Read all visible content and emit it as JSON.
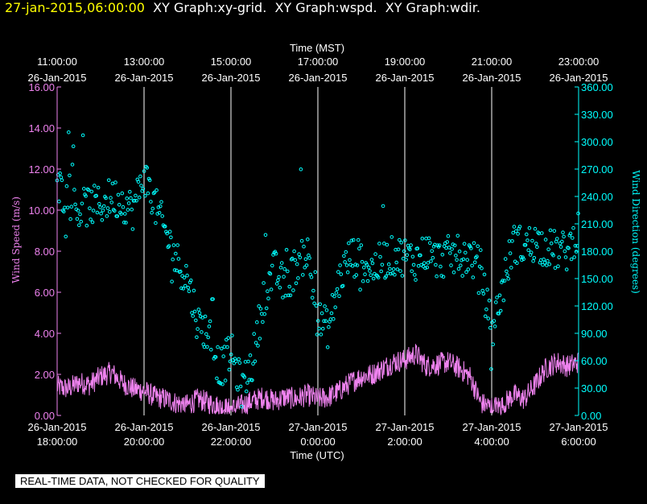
{
  "header": {
    "timestamp": "27-jan-2015,06:00:00",
    "titles": [
      "XY Graph:xy-grid.",
      "XY Graph:wspd.",
      "XY Graph:wdir."
    ]
  },
  "notice": "REAL-TIME DATA, NOT CHECKED FOR QUALITY",
  "colors": {
    "grid": "#ffffff",
    "speed": "#ee82ee",
    "direction": "#00ffff",
    "background": "#000000",
    "header_timestamp": "#ffff00"
  },
  "chart_data": {
    "type": "scatter",
    "x_top_label": "Time (MST)",
    "x_bottom_label": "Time (UTC)",
    "y_left_label": "Wind Speed (m/s)",
    "y_right_label": "Wind Direction (degrees)",
    "x_range_utc_hours": [
      18,
      30
    ],
    "ylim_left": [
      0,
      16
    ],
    "ylim_right": [
      0,
      360
    ],
    "grid": "vertical",
    "top_ticks": [
      {
        "hour": 18,
        "time": "11:00:00",
        "date": "26-Jan-2015"
      },
      {
        "hour": 20,
        "time": "13:00:00",
        "date": "26-Jan-2015"
      },
      {
        "hour": 22,
        "time": "15:00:00",
        "date": "26-Jan-2015"
      },
      {
        "hour": 24,
        "time": "17:00:00",
        "date": "26-Jan-2015"
      },
      {
        "hour": 26,
        "time": "19:00:00",
        "date": "26-Jan-2015"
      },
      {
        "hour": 28,
        "time": "21:00:00",
        "date": "26-Jan-2015"
      },
      {
        "hour": 30,
        "time": "23:00:00",
        "date": "26-Jan-2015"
      }
    ],
    "bottom_ticks": [
      {
        "hour": 18,
        "date": "26-Jan-2015",
        "time": "18:00:00"
      },
      {
        "hour": 20,
        "date": "26-Jan-2015",
        "time": "20:00:00"
      },
      {
        "hour": 22,
        "date": "26-Jan-2015",
        "time": "22:00:00"
      },
      {
        "hour": 24,
        "date": "27-Jan-2015",
        "time": "0:00:00"
      },
      {
        "hour": 26,
        "date": "27-Jan-2015",
        "time": "2:00:00"
      },
      {
        "hour": 28,
        "date": "27-Jan-2015",
        "time": "4:00:00"
      },
      {
        "hour": 30,
        "date": "27-Jan-2015",
        "time": "6:00:00"
      }
    ],
    "left_ticks": [
      {
        "v": 0,
        "label": "0.00"
      },
      {
        "v": 2,
        "label": "2.00"
      },
      {
        "v": 4,
        "label": "4.00"
      },
      {
        "v": 6,
        "label": "6.00"
      },
      {
        "v": 8,
        "label": "8.00"
      },
      {
        "v": 10,
        "label": "10.00"
      },
      {
        "v": 12,
        "label": "12.00"
      },
      {
        "v": 14,
        "label": "14.00"
      },
      {
        "v": 16,
        "label": "16.00"
      }
    ],
    "right_ticks": [
      {
        "v": 0,
        "label": "0.00"
      },
      {
        "v": 30,
        "label": "30.00"
      },
      {
        "v": 60,
        "label": "60.00"
      },
      {
        "v": 90,
        "label": "90.00"
      },
      {
        "v": 120,
        "label": "120.00"
      },
      {
        "v": 150,
        "label": "150.00"
      },
      {
        "v": 180,
        "label": "180.00"
      },
      {
        "v": 210,
        "label": "210.00"
      },
      {
        "v": 240,
        "label": "240.00"
      },
      {
        "v": 270,
        "label": "270.00"
      },
      {
        "v": 300,
        "label": "300.00"
      },
      {
        "v": 330,
        "label": "330.00"
      },
      {
        "v": 360,
        "label": "360.00"
      }
    ],
    "series": [
      {
        "name": "Wind Speed (m/s)",
        "axis": "left",
        "style": "line",
        "x": [
          18.0,
          18.25,
          18.5,
          18.75,
          19.0,
          19.25,
          19.5,
          19.75,
          20.0,
          20.25,
          20.5,
          20.75,
          21.0,
          21.25,
          21.5,
          21.75,
          22.0,
          22.25,
          22.5,
          22.75,
          23.0,
          23.25,
          23.5,
          23.75,
          24.0,
          24.25,
          24.5,
          24.75,
          25.0,
          25.25,
          25.5,
          25.75,
          26.0,
          26.25,
          26.5,
          26.75,
          27.0,
          27.25,
          27.5,
          27.75,
          28.0,
          28.25,
          28.5,
          28.75,
          29.0,
          29.25,
          29.5,
          29.75,
          30.0
        ],
        "y": [
          1.4,
          1.3,
          1.6,
          1.5,
          1.9,
          2.1,
          1.6,
          1.3,
          1.2,
          0.9,
          0.8,
          0.6,
          0.5,
          0.8,
          0.6,
          0.4,
          0.3,
          0.5,
          0.7,
          0.9,
          0.7,
          0.9,
          0.8,
          1.0,
          0.8,
          0.9,
          1.2,
          1.6,
          1.9,
          2.0,
          2.3,
          2.6,
          2.7,
          3.0,
          2.4,
          2.5,
          2.6,
          2.3,
          1.9,
          0.6,
          0.4,
          0.5,
          1.0,
          0.8,
          1.5,
          2.3,
          2.6,
          2.4,
          2.6
        ],
        "noise": 0.55
      },
      {
        "name": "Wind Direction (degrees)",
        "axis": "right",
        "style": "points",
        "x": [
          18.0,
          18.25,
          18.5,
          18.75,
          19.0,
          19.25,
          19.5,
          19.75,
          20.0,
          20.25,
          20.5,
          20.75,
          21.0,
          21.25,
          21.5,
          21.75,
          22.0,
          22.25,
          22.5,
          22.75,
          23.0,
          23.25,
          23.5,
          23.75,
          24.0,
          24.25,
          24.5,
          24.75,
          25.0,
          25.25,
          25.5,
          25.75,
          26.0,
          26.25,
          26.5,
          26.75,
          27.0,
          27.25,
          27.5,
          27.75,
          28.0,
          28.25,
          28.5,
          28.75,
          29.0,
          29.25,
          29.5,
          29.75,
          30.0
        ],
        "y": [
          250,
          240,
          225,
          230,
          230,
          240,
          235,
          225,
          265,
          230,
          200,
          170,
          150,
          100,
          90,
          50,
          70,
          30,
          60,
          130,
          160,
          140,
          165,
          180,
          105,
          95,
          150,
          175,
          170,
          160,
          170,
          175,
          175,
          170,
          180,
          170,
          175,
          175,
          175,
          160,
          90,
          140,
          190,
          185,
          190,
          185,
          180,
          180,
          205
        ],
        "noise": 22
      }
    ]
  }
}
